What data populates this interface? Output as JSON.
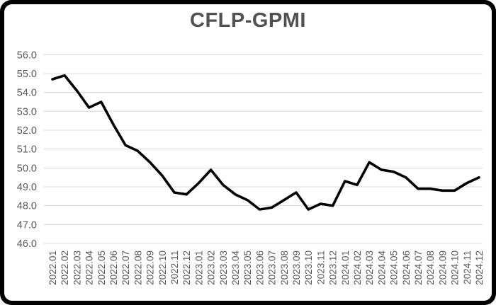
{
  "window": {
    "title": "CFLP-GPMI"
  },
  "chart_data": {
    "type": "line",
    "title": "CFLP-GPMI",
    "xlabel": "",
    "ylabel": "",
    "categories": [
      "2022.01",
      "2022.02",
      "2022.03",
      "2022.04",
      "2022.05",
      "2022.06",
      "2022.07",
      "2022.08",
      "2022.09",
      "2022.10",
      "2022.11",
      "2022.12",
      "2023.01",
      "2023.02",
      "2023.03",
      "2023.04",
      "2023.05",
      "2023.06",
      "2023.07",
      "2023.08",
      "2023.09",
      "2023.10",
      "2023.11",
      "2023.12",
      "2024.01",
      "2024.02",
      "2024.03",
      "2024.04",
      "2024.05",
      "2024.06",
      "2024.07",
      "2024.08",
      "2024.09",
      "2024.10",
      "2024.11",
      "2024.12"
    ],
    "series": [
      {
        "name": "CFLP-GPMI",
        "values": [
          54.7,
          54.9,
          54.1,
          53.2,
          53.5,
          52.3,
          51.2,
          50.9,
          50.3,
          49.6,
          48.7,
          48.6,
          49.2,
          49.9,
          49.1,
          48.6,
          48.3,
          47.8,
          47.9,
          48.3,
          48.7,
          47.8,
          48.1,
          48.0,
          49.3,
          49.1,
          50.3,
          49.9,
          49.8,
          49.5,
          48.9,
          48.9,
          48.8,
          48.8,
          49.2,
          49.5
        ]
      }
    ],
    "ylim": [
      46.0,
      56.0
    ],
    "ytick_step": 1.0,
    "ytick_labels": [
      "56.0",
      "55.0",
      "54.0",
      "53.0",
      "52.0",
      "51.0",
      "50.0",
      "49.0",
      "48.0",
      "47.0",
      "46.0"
    ],
    "grid": "horizontal",
    "legend_position": "none",
    "line_color": "#000000",
    "grid_color": "#d9d9d9",
    "tick_label_color": "#595959",
    "title_color": "#525252",
    "panel_background": "#ffffff",
    "frame_color": "#000000"
  }
}
